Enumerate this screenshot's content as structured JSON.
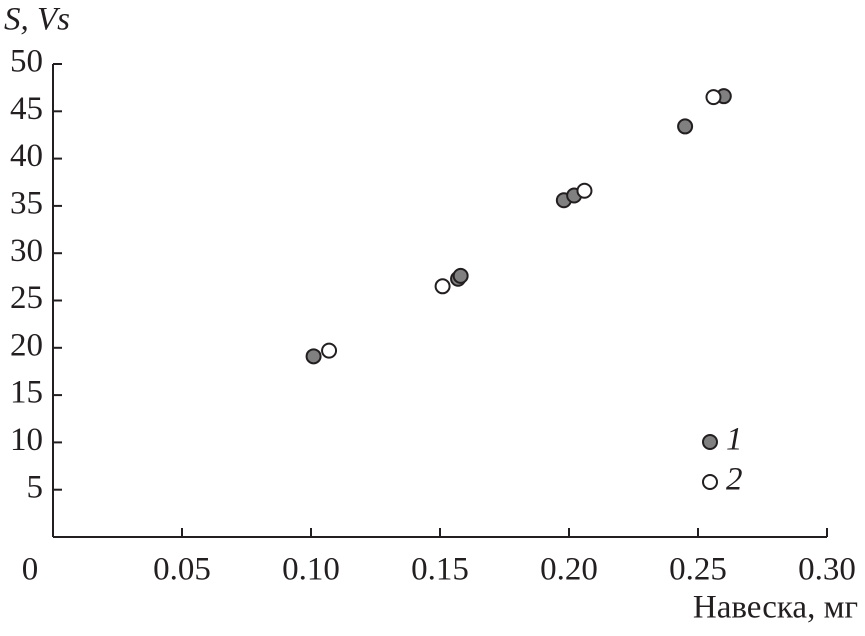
{
  "chart_data": {
    "type": "scatter",
    "y_label": "S, Vs",
    "x_label": "Навеска, мг",
    "xlim": [
      0,
      0.3
    ],
    "xticks": [
      0,
      0.05,
      {
        "value": 0.1,
        "label": "0.10"
      },
      0.15,
      {
        "value": 0.2,
        "label": "0.20"
      },
      0.25,
      {
        "value": 0.3,
        "label": "0.30"
      }
    ],
    "ylim": [
      0,
      50
    ],
    "yticks": [
      5,
      10,
      15,
      20,
      25,
      30,
      35,
      40,
      45,
      50
    ],
    "grid": false,
    "legend": "lower right",
    "series": [
      {
        "name": "1",
        "color": "#808080",
        "x": [
          0.101,
          0.157,
          0.158,
          0.198,
          0.202,
          0.245,
          0.26
        ],
        "values": [
          19.1,
          27.3,
          27.6,
          35.6,
          36.1,
          43.4,
          46.6
        ]
      },
      {
        "name": "2",
        "color": "#ffffff",
        "x": [
          0.107,
          0.151,
          0.206,
          0.256
        ],
        "values": [
          19.7,
          26.5,
          36.6,
          46.5
        ]
      }
    ]
  }
}
